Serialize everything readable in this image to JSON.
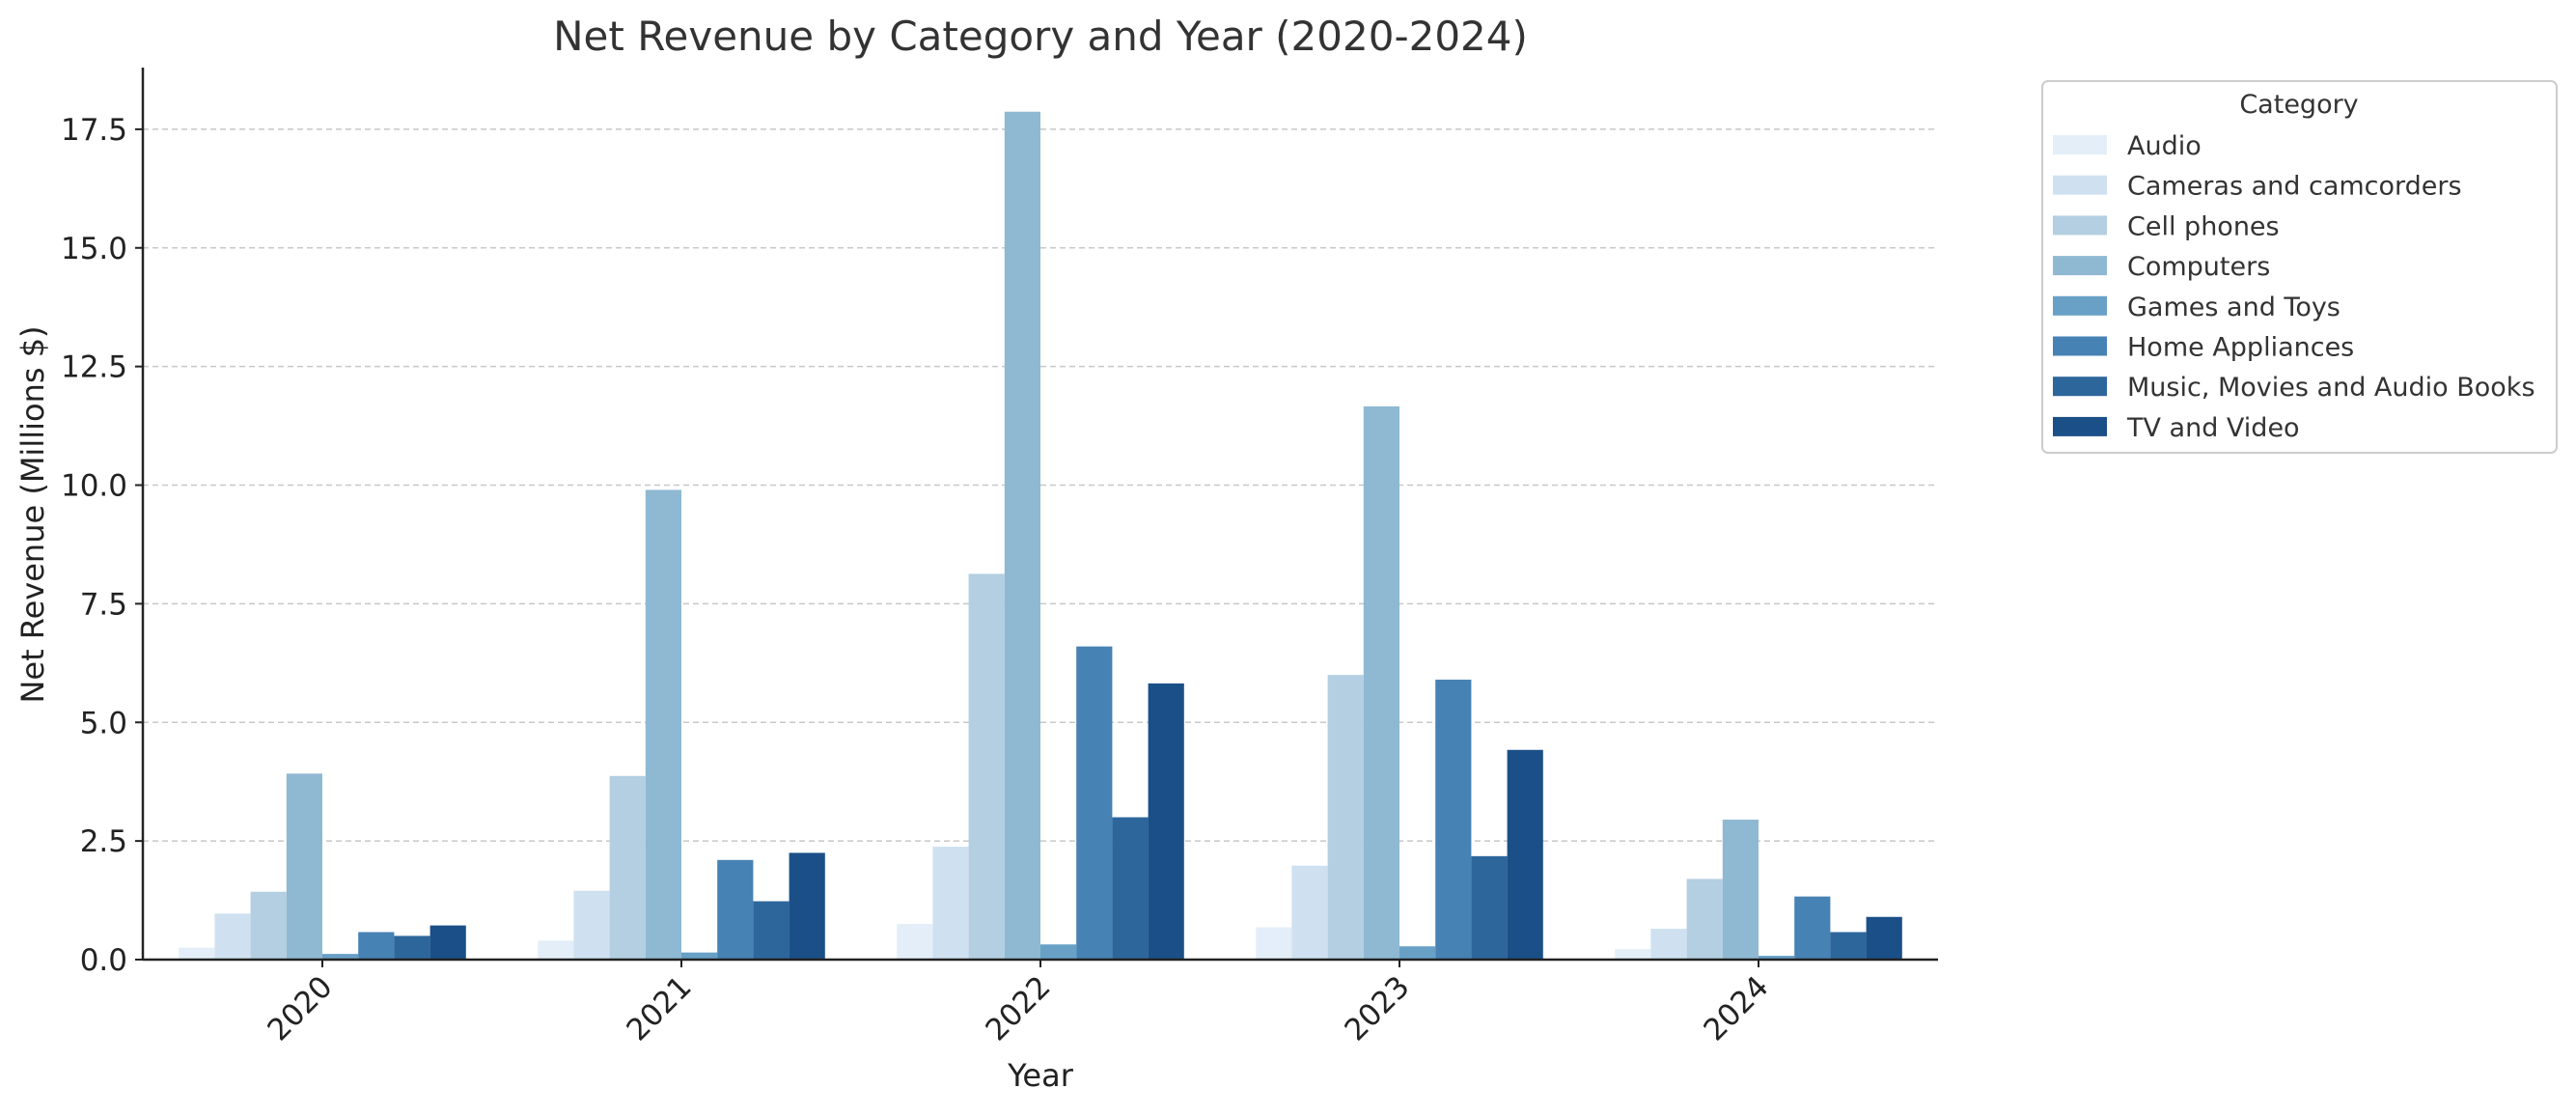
{
  "chart_data": {
    "type": "bar",
    "title": "Net Revenue by Category and Year (2020-2024)",
    "xlabel": "Year",
    "ylabel": "Net Revenue (Millions $)",
    "ylim": [
      0,
      18.8
    ],
    "yticks": [
      0.0,
      2.5,
      5.0,
      7.5,
      10.0,
      12.5,
      15.0,
      17.5
    ],
    "ytick_labels": [
      "0.0",
      "2.5",
      "5.0",
      "7.5",
      "10.0",
      "12.5",
      "15.0",
      "17.5"
    ],
    "grid": "y-dashed",
    "categories": [
      "2020",
      "2021",
      "2022",
      "2023",
      "2024"
    ],
    "legend": {
      "title": "Category",
      "placement": "outside-top-right"
    },
    "series": [
      {
        "name": "Audio",
        "color": "#e3eef8",
        "values": [
          0.25,
          0.4,
          0.75,
          0.68,
          0.22
        ]
      },
      {
        "name": "Cameras and camcorders",
        "color": "#cfe1f0",
        "values": [
          0.97,
          1.45,
          2.38,
          1.98,
          0.65
        ]
      },
      {
        "name": "Cell phones",
        "color": "#b3cfe1",
        "values": [
          1.43,
          3.87,
          8.13,
          6.0,
          1.7
        ]
      },
      {
        "name": "Computers",
        "color": "#8fb9d2",
        "values": [
          3.92,
          9.9,
          17.87,
          11.66,
          2.95
        ]
      },
      {
        "name": "Games and Toys",
        "color": "#68a0c6",
        "values": [
          0.12,
          0.15,
          0.32,
          0.28,
          0.08
        ]
      },
      {
        "name": "Home Appliances",
        "color": "#4682b4",
        "values": [
          0.58,
          2.1,
          6.6,
          5.9,
          1.33
        ]
      },
      {
        "name": "Music, Movies and Audio Books",
        "color": "#2d669b",
        "values": [
          0.5,
          1.23,
          3.0,
          2.18,
          0.58
        ]
      },
      {
        "name": "TV and Video",
        "color": "#1b4f87",
        "values": [
          0.72,
          2.25,
          5.82,
          4.42,
          0.9
        ]
      }
    ]
  }
}
